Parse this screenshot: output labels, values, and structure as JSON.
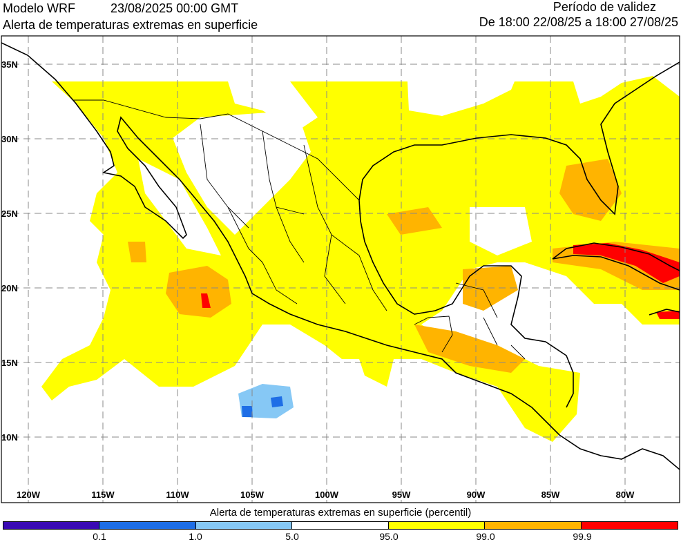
{
  "header": {
    "model": "Modelo WRF",
    "datetime": "23/08/2025 00:00 GMT",
    "subtitle": "Alerta de temperaturas extremas en superficie",
    "validity_label": "Período de validez",
    "validity_range": "De 18:00 22/08/25 a 18:00 27/08/25"
  },
  "map": {
    "lon_labels": [
      "120W",
      "115W",
      "110W",
      "105W",
      "100W",
      "95W",
      "90W",
      "85W",
      "80W"
    ],
    "lat_labels": [
      "35N",
      "30N",
      "25N",
      "20N",
      "15N",
      "10N"
    ]
  },
  "colorbar": {
    "title": "Alerta de temperaturas extremas en superficie (percentil)",
    "colors": [
      "#3a0ab4",
      "#1e6ee6",
      "#86c8f5",
      "#ffffff",
      "#ffff00",
      "#ffb400",
      "#ff0000"
    ],
    "labels": [
      "0.1",
      "1.0",
      "5.0",
      "95.0",
      "99.0",
      "99.9"
    ]
  }
}
